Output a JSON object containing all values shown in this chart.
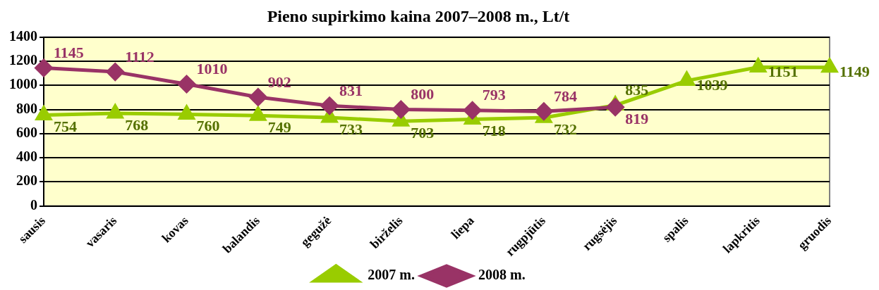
{
  "chart_data": {
    "type": "line",
    "title": "Pieno supirkimo kaina 2007–2008 m., Lt/t",
    "categories": [
      "sausis",
      "vasaris",
      "kovas",
      "balandis",
      "gegužė",
      "birželis",
      "liepa",
      "rugpjūtis",
      "rugsėjis",
      "spalis",
      "lapkritis",
      "gruodis"
    ],
    "series": [
      {
        "name": "2007 m.",
        "color": "#99cc00",
        "marker": "triangle",
        "values": [
          754,
          768,
          760,
          749,
          733,
          703,
          718,
          732,
          835,
          1039,
          1151,
          1149
        ]
      },
      {
        "name": "2008 m.",
        "color": "#993366",
        "marker": "diamond",
        "values": [
          1145,
          1112,
          1010,
          902,
          831,
          800,
          793,
          784,
          819,
          null,
          null,
          null
        ]
      }
    ],
    "ylim": [
      0,
      1400
    ],
    "yticks": [
      0,
      200,
      400,
      600,
      800,
      1000,
      1200,
      1400
    ],
    "grid": "y",
    "legend": "bottom",
    "data_labels": true,
    "line_style": "solid"
  }
}
